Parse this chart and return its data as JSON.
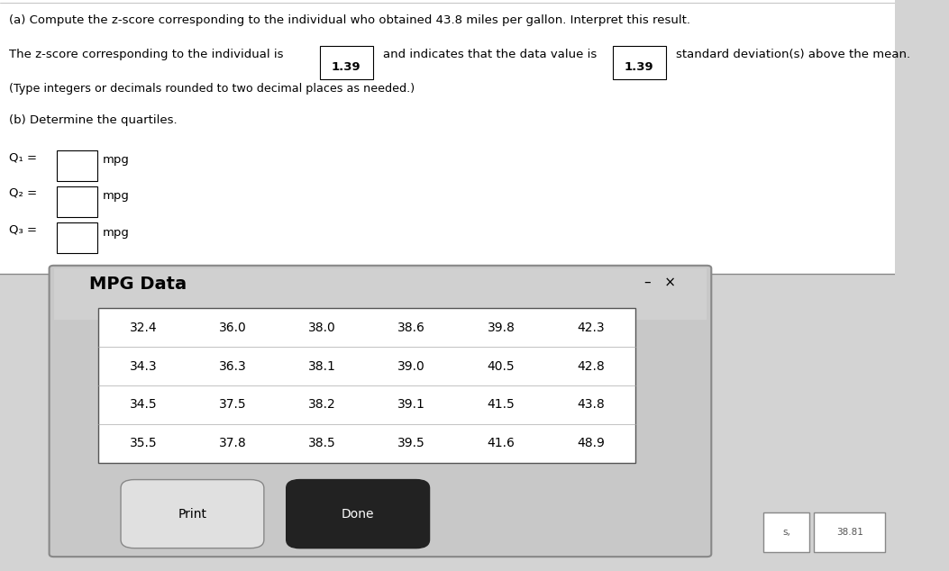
{
  "title_a": "(a) Compute the z-score corresponding to the individual who obtained 43.8 miles per gallon. Interpret this result.",
  "line1_pre": "The z-score corresponding to the individual is",
  "zscore1": "1.39",
  "line1_mid": "and indicates that the data value is",
  "zscore2": "1.39",
  "line1_post": "standard deviation(s) above the mean.",
  "line2": "(Type integers or decimals rounded to two decimal places as needed.)",
  "title_b": "(b) Determine the quartiles.",
  "q1_label": "Q₁ =",
  "q2_label": "Q₂ =",
  "q3_label": "Q₃ =",
  "mpg": "mpg",
  "dialog_title": "MPG Data",
  "table_data": [
    [
      "32.4",
      "36.0",
      "38.0",
      "38.6",
      "39.8",
      "42.3"
    ],
    [
      "34.3",
      "36.3",
      "38.1",
      "39.0",
      "40.5",
      "42.8"
    ],
    [
      "34.5",
      "37.5",
      "38.2",
      "39.1",
      "41.5",
      "43.8"
    ],
    [
      "35.5",
      "37.8",
      "38.5",
      "39.5",
      "41.6",
      "48.9"
    ]
  ],
  "btn_print": "Print",
  "btn_done": "Done",
  "bg_color": "#d3d3d3",
  "text_color": "#000000",
  "bottom_labels": [
    "s,",
    "38.81"
  ]
}
